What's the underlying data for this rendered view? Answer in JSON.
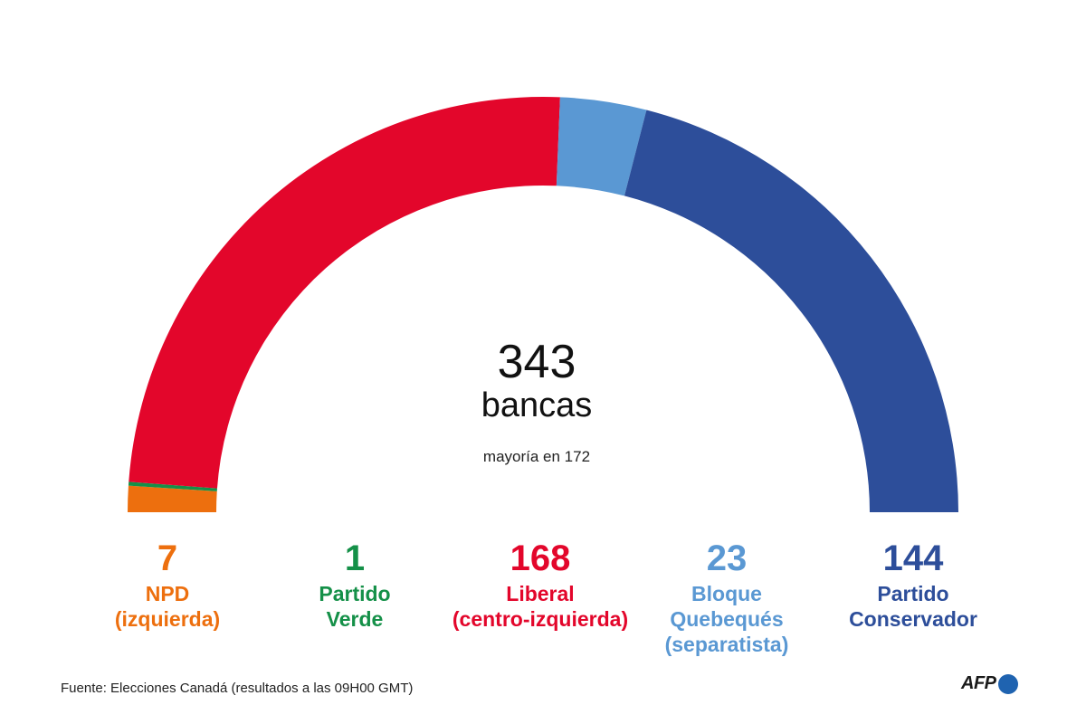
{
  "chart_data": {
    "type": "pie",
    "subtype": "parliament-semicircle",
    "total": 343,
    "total_label": "343",
    "unit_label": "bancas",
    "majority_label": "mayoría en 172",
    "series": [
      {
        "key": "npd",
        "value": 7,
        "value_label": "7",
        "name": "NPD\n(izquierda)",
        "color": "#ED6F0E"
      },
      {
        "key": "verde",
        "value": 1,
        "value_label": "1",
        "name": "Partido\nVerde",
        "color": "#149048"
      },
      {
        "key": "liberal",
        "value": 168,
        "value_label": "168",
        "name": "Liberal\n(centro-izquierda)",
        "color": "#E3062B"
      },
      {
        "key": "bloque",
        "value": 23,
        "value_label": "23",
        "name": "Bloque\nQuebequés\n(separatista)",
        "color": "#5A98D3"
      },
      {
        "key": "conservador",
        "value": 144,
        "value_label": "144",
        "name": "Partido\nConservador",
        "color": "#2D4E9A"
      }
    ]
  },
  "source": "Fuente: Elecciones Canadá (resultados a las 09H00 GMT)",
  "logo": {
    "text": "AFP",
    "dot_color": "#1F63B0"
  }
}
